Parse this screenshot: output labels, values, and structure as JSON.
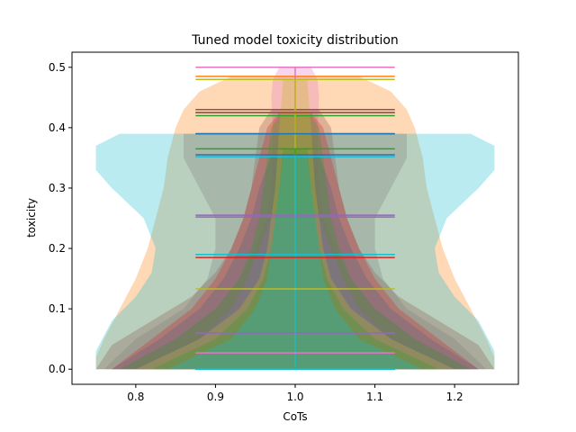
{
  "chart_data": {
    "type": "violin",
    "title": "Tuned model toxicity distribution",
    "xlabel": "CoTs",
    "ylabel": "toxicity",
    "xlim": [
      0.72,
      1.28
    ],
    "ylim": [
      -0.025,
      0.525
    ],
    "xticks": [
      0.8,
      0.9,
      1.0,
      1.1,
      1.2
    ],
    "yticks": [
      0.0,
      0.1,
      0.2,
      0.3,
      0.4,
      0.5
    ],
    "xtick_labels": [
      "0.8",
      "0.9",
      "1.0",
      "1.1",
      "1.2"
    ],
    "ytick_labels": [
      "0.0",
      "0.1",
      "0.2",
      "0.3",
      "0.4",
      "0.5"
    ],
    "position": 1.0,
    "series": [
      {
        "color": "#ff7f0e",
        "max": 0.485,
        "min": 0.0,
        "widths": [
          [
            0.0,
            0.25
          ],
          [
            0.02,
            0.25
          ],
          [
            0.05,
            0.24
          ],
          [
            0.1,
            0.22
          ],
          [
            0.15,
            0.2
          ],
          [
            0.2,
            0.185
          ],
          [
            0.25,
            0.175
          ],
          [
            0.3,
            0.165
          ],
          [
            0.35,
            0.16
          ],
          [
            0.4,
            0.15
          ],
          [
            0.43,
            0.14
          ],
          [
            0.46,
            0.12
          ],
          [
            0.485,
            0.08
          ]
        ]
      },
      {
        "color": "#e377c2",
        "max": 0.5,
        "min": 0.0,
        "widths": [
          [
            0.0,
            0.22
          ],
          [
            0.05,
            0.15
          ],
          [
            0.1,
            0.1
          ],
          [
            0.15,
            0.07
          ],
          [
            0.2,
            0.05
          ],
          [
            0.25,
            0.035
          ],
          [
            0.3,
            0.03
          ],
          [
            0.35,
            0.028
          ],
          [
            0.4,
            0.028
          ],
          [
            0.45,
            0.03
          ],
          [
            0.48,
            0.028
          ],
          [
            0.5,
            0.02
          ]
        ]
      },
      {
        "color": "#17becf",
        "max": 0.39,
        "min": 0.0,
        "widths": [
          [
            0.0,
            0.25
          ],
          [
            0.03,
            0.25
          ],
          [
            0.08,
            0.23
          ],
          [
            0.12,
            0.2
          ],
          [
            0.16,
            0.18
          ],
          [
            0.2,
            0.175
          ],
          [
            0.25,
            0.19
          ],
          [
            0.3,
            0.23
          ],
          [
            0.33,
            0.25
          ],
          [
            0.37,
            0.25
          ],
          [
            0.39,
            0.22
          ]
        ]
      },
      {
        "color": "#8c564b",
        "max": 0.43,
        "min": 0.0,
        "widths": [
          [
            0.0,
            0.25
          ],
          [
            0.04,
            0.23
          ],
          [
            0.08,
            0.18
          ],
          [
            0.12,
            0.13
          ],
          [
            0.16,
            0.1
          ],
          [
            0.2,
            0.08
          ],
          [
            0.25,
            0.065
          ],
          [
            0.3,
            0.055
          ],
          [
            0.35,
            0.05
          ],
          [
            0.4,
            0.045
          ],
          [
            0.43,
            0.03
          ]
        ]
      },
      {
        "color": "#7f7f7f",
        "max": 0.39,
        "min": 0.0,
        "widths": [
          [
            0.0,
            0.24
          ],
          [
            0.05,
            0.2
          ],
          [
            0.1,
            0.14
          ],
          [
            0.15,
            0.11
          ],
          [
            0.2,
            0.1
          ],
          [
            0.25,
            0.1
          ],
          [
            0.3,
            0.12
          ],
          [
            0.35,
            0.14
          ],
          [
            0.39,
            0.14
          ]
        ]
      },
      {
        "color": "#1f77b4",
        "max": 0.355,
        "min": 0.0,
        "widths": [
          [
            0.0,
            0.23
          ],
          [
            0.05,
            0.17
          ],
          [
            0.1,
            0.12
          ],
          [
            0.15,
            0.09
          ],
          [
            0.2,
            0.07
          ],
          [
            0.25,
            0.055
          ],
          [
            0.3,
            0.045
          ],
          [
            0.355,
            0.03
          ]
        ]
      },
      {
        "color": "#d62728",
        "max": 0.425,
        "min": 0.0,
        "widths": [
          [
            0.0,
            0.23
          ],
          [
            0.05,
            0.18
          ],
          [
            0.1,
            0.13
          ],
          [
            0.15,
            0.1
          ],
          [
            0.2,
            0.08
          ],
          [
            0.25,
            0.065
          ],
          [
            0.3,
            0.055
          ],
          [
            0.35,
            0.045
          ],
          [
            0.4,
            0.035
          ],
          [
            0.425,
            0.02
          ]
        ]
      },
      {
        "color": "#2ca02c",
        "max": 0.42,
        "min": 0.0,
        "widths": [
          [
            0.0,
            0.22
          ],
          [
            0.05,
            0.15
          ],
          [
            0.1,
            0.1
          ],
          [
            0.15,
            0.07
          ],
          [
            0.2,
            0.055
          ],
          [
            0.25,
            0.045
          ],
          [
            0.3,
            0.04
          ],
          [
            0.35,
            0.035
          ],
          [
            0.4,
            0.03
          ],
          [
            0.42,
            0.02
          ]
        ]
      },
      {
        "color": "#9467bd",
        "max": 0.255,
        "min": 0.0,
        "widths": [
          [
            0.0,
            0.2
          ],
          [
            0.05,
            0.12
          ],
          [
            0.1,
            0.08
          ],
          [
            0.15,
            0.06
          ],
          [
            0.2,
            0.045
          ],
          [
            0.255,
            0.03
          ]
        ]
      },
      {
        "color": "#bcbd22",
        "max": 0.48,
        "min": 0.0,
        "widths": [
          [
            0.0,
            0.2
          ],
          [
            0.05,
            0.12
          ],
          [
            0.1,
            0.07
          ],
          [
            0.15,
            0.045
          ],
          [
            0.2,
            0.035
          ],
          [
            0.3,
            0.025
          ],
          [
            0.4,
            0.02
          ],
          [
            0.48,
            0.015
          ]
        ]
      },
      {
        "color": "#2ca02c",
        "max": 0.365,
        "min": 0.0,
        "widths": [
          [
            0.0,
            0.18
          ],
          [
            0.05,
            0.1
          ],
          [
            0.1,
            0.06
          ],
          [
            0.15,
            0.04
          ],
          [
            0.2,
            0.03
          ],
          [
            0.3,
            0.02
          ],
          [
            0.365,
            0.015
          ]
        ]
      },
      {
        "color": "#17becf",
        "max": 0.352,
        "min": 0.0,
        "widths": [
          [
            0.0,
            0.16
          ],
          [
            0.05,
            0.08
          ],
          [
            0.1,
            0.05
          ],
          [
            0.15,
            0.035
          ],
          [
            0.25,
            0.025
          ],
          [
            0.352,
            0.015
          ]
        ]
      }
    ],
    "extra_lines": [
      {
        "y": 0.19,
        "color": "#17becf"
      },
      {
        "y": 0.185,
        "color": "#d62728"
      },
      {
        "y": 0.133,
        "color": "#bcbd22"
      },
      {
        "y": 0.06,
        "color": "#9467bd"
      },
      {
        "y": 0.027,
        "color": "#e377c2"
      },
      {
        "y": 0.252,
        "color": "#9467bd"
      },
      {
        "y": 0.425,
        "color": "#8c564b"
      },
      {
        "y": 0.39,
        "color": "#1f77b4"
      }
    ],
    "fill_alpha": 0.3,
    "cap_halfwidth": 0.125,
    "grid": false
  }
}
